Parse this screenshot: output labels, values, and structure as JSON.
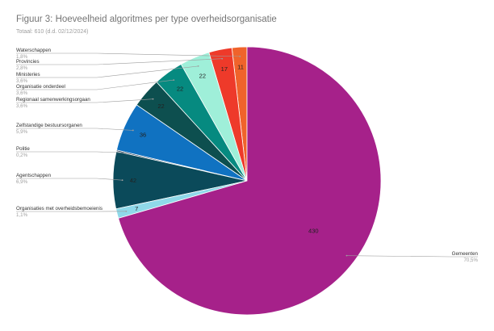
{
  "title": "Figuur 3: Hoeveelheid algoritmes per type overheidsorganisatie",
  "subtitle": "Totaal: 610 (d.d. 02/12/2024)",
  "chart_data": {
    "type": "pie",
    "title": "Figuur 3: Hoeveelheid algoritmes per type overheidsorganisatie",
    "subtitle": "Totaal: 610 (d.d. 02/12/2024)",
    "legend": "none",
    "slices": [
      {
        "label": "Waterschappen",
        "value": 11,
        "pct": "1,8%",
        "color": "#f0632b"
      },
      {
        "label": "Provincies",
        "value": 17,
        "pct": "2,8%",
        "color": "#ee3a2a"
      },
      {
        "label": "Ministeries",
        "value": 22,
        "pct": "3,6%",
        "color": "#9fefd9"
      },
      {
        "label": "Organisatie onderdeel",
        "value": 22,
        "pct": "3,6%",
        "color": "#068a80"
      },
      {
        "label": "Regionaal samenwerkingsorgaan",
        "value": 22,
        "pct": "3,6%",
        "color": "#0d4f4f"
      },
      {
        "label": "Zelfstandige bestuursorganen",
        "value": 36,
        "pct": "5,9%",
        "color": "#1072c1"
      },
      {
        "label": "Politie",
        "value": 1,
        "pct": "0,2%",
        "color": "#0f2a4a"
      },
      {
        "label": "Agentschappen",
        "value": 42,
        "pct": "6,9%",
        "color": "#0b4a5a"
      },
      {
        "label": "Organisaties met overheidsbemoeienis",
        "value": 7,
        "pct": "1,1%",
        "color": "#8fd9e9"
      },
      {
        "label": "Gemeenten",
        "value": 430,
        "pct": "70,5%",
        "color": "#a6218a"
      }
    ]
  }
}
